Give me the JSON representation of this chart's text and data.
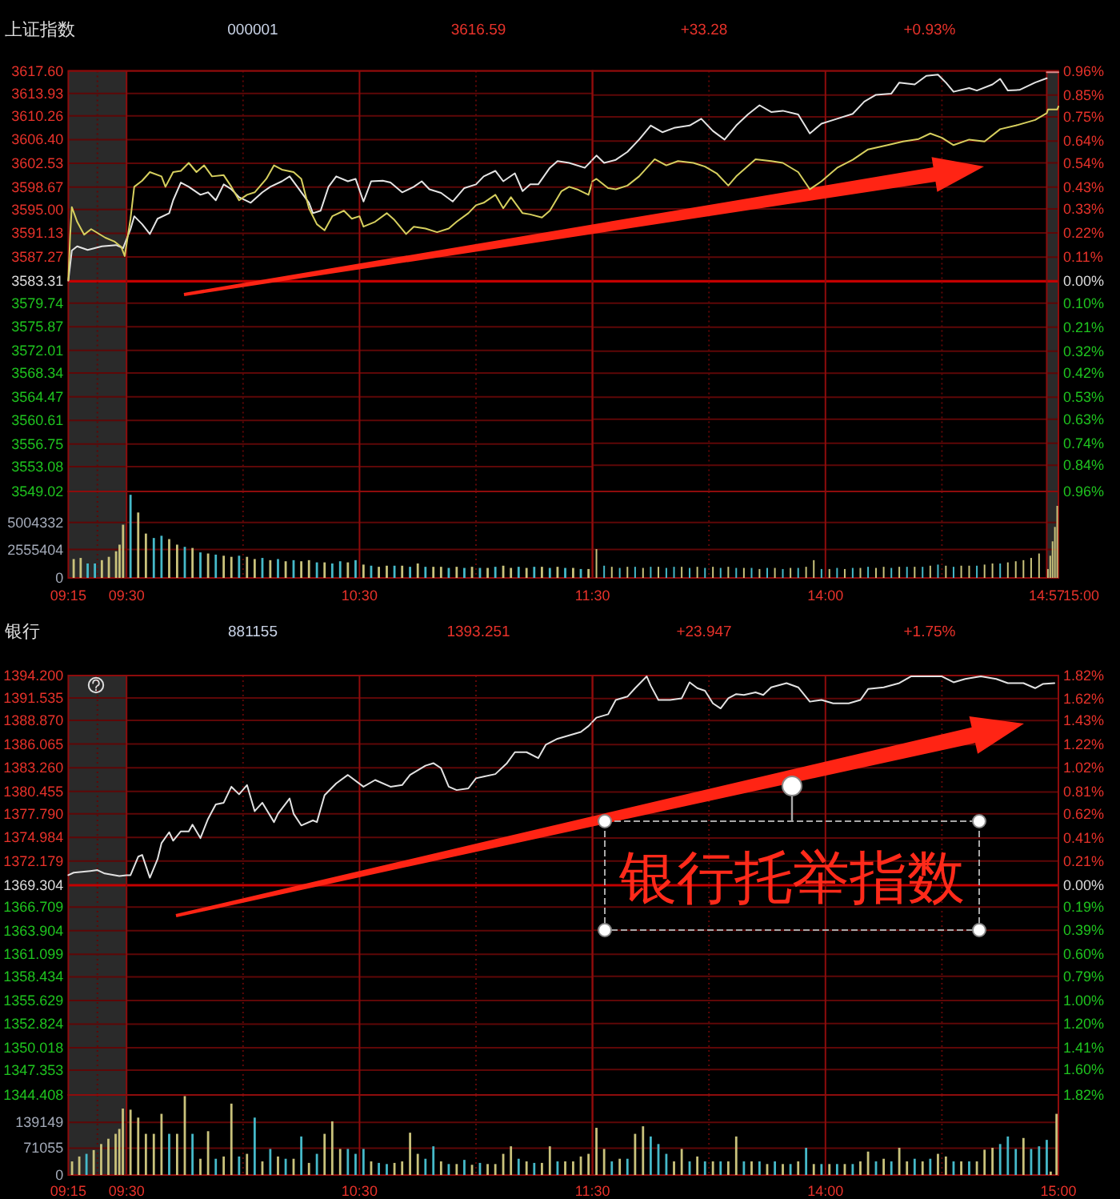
{
  "chart_data": [
    {
      "type": "line",
      "title": "上证指数",
      "annotations": [
        "000001",
        "3616.59",
        "+33.28",
        "+0.93%"
      ],
      "xlim": [
        9.25,
        11.5
      ],
      "ylim": [
        3549.02,
        3617.6
      ],
      "yticks": [
        {
          "value": 3617.6,
          "label": "3617.60"
        },
        3613.93,
        3610.26,
        {
          "value": 3606.4,
          "label": "3606.40"
        },
        3602.53,
        3598.67,
        {
          "value": 3595,
          "label": "3595.00"
        },
        3591.13,
        3587.27,
        3583.31,
        3579.74,
        3575.87,
        3572.01,
        3568.34,
        3564.47,
        3560.61,
        3556.75,
        3553.08,
        3549.02
      ],
      "grid": "y",
      "tick_labels": "y",
      "bands": [
        {
          "axis": "x",
          "from": 9.25,
          "to": 9.5,
          "color": "#2a2a2a"
        }
      ],
      "ref_lines": [
        {
          "axis": "y",
          "value": 3583.31,
          "color": "#c40000"
        },
        {
          "axis": "x",
          "value": 9.375,
          "color": "#5e0707",
          "line_style": "dotted"
        },
        {
          "axis": "x",
          "value": 9.5,
          "color": "#8e0c0c"
        },
        {
          "axis": "x",
          "value": 10,
          "color": "#5e0707",
          "line_style": "dotted"
        },
        {
          "axis": "x",
          "value": 10.5,
          "color": "#8e0c0c"
        },
        {
          "axis": "x",
          "value": 11,
          "color": "#5e0707",
          "line_style": "dotted"
        }
      ],
      "series": [
        {
          "color": "#e4e4e4",
          "x": [
            9.25,
            9.265,
            9.288,
            9.333,
            9.394,
            9.455,
            9.485,
            9.517,
            9.533,
            9.567,
            9.6,
            9.633,
            9.683,
            9.7,
            9.733,
            9.767,
            9.817,
            9.85,
            9.883,
            9.917,
            9.95,
            9.983,
            10.033,
            10.083,
            10.117,
            10.167,
            10.2,
            10.233,
            10.283,
            10.3,
            10.333,
            10.367,
            10.4,
            10.45,
            10.483,
            10.517,
            10.55,
            10.6,
            10.633,
            10.683,
            10.733,
            10.767,
            10.8,
            10.85,
            10.9,
            10.95,
            11,
            11.033,
            11.083,
            11.117,
            11.167,
            11.2,
            11.233,
            11.267,
            11.317,
            11.35,
            11.4,
            11.467,
            11.5
          ],
          "values": [
            3583.4,
            3588.3,
            3589.0,
            3588.4,
            3589.0,
            3589.2,
            3588.7,
            3591.8,
            3593.9,
            3592.6,
            3591.0,
            3593.5,
            3594.4,
            3596.5,
            3599.4,
            3598.7,
            3597.4,
            3597.8,
            3596.5,
            3599.1,
            3598.3,
            3597.0,
            3596.1,
            3597.8,
            3598.7,
            3599.6,
            3600.4,
            3598.7,
            3596.1,
            3594.4,
            3594.8,
            3598.7,
            3600.4,
            3599.6,
            3600.0,
            3596.3,
            3599.6,
            3599.7,
            3599.4,
            3597.8,
            3598.7,
            3599.6,
            3598.3,
            3597.7,
            3596.3,
            3598.5,
            3599.1,
            3600.4,
            3601.3,
            3599.6,
            3600.9,
            3598.0,
            3599.1,
            3599.1,
            3601.8,
            3602.9,
            3602.6,
            3601.8,
            3603.1
          ]
        },
        {
          "color": "#d6cf5e",
          "x": [
            9.25,
            9.258,
            9.265,
            9.288,
            9.318,
            9.348,
            9.409,
            9.447,
            9.477,
            9.492,
            9.517,
            9.533,
            9.567,
            9.6,
            9.65,
            9.667,
            9.7,
            9.733,
            9.767,
            9.8,
            9.833,
            9.867,
            9.917,
            9.95,
            9.983,
            10.017,
            10.05,
            10.1,
            10.133,
            10.167,
            10.217,
            10.25,
            10.283,
            10.317,
            10.35,
            10.383,
            10.433,
            10.467,
            10.5,
            10.517,
            10.567,
            10.617,
            10.65,
            10.7,
            10.733,
            10.783,
            10.833,
            10.883,
            10.917,
            10.967,
            11,
            11.033,
            11.083,
            11.117,
            11.15,
            11.2,
            11.233,
            11.283,
            11.317,
            11.367,
            11.4,
            11.433,
            11.483,
            11.5
          ],
          "values": [
            3583.5,
            3590.9,
            3595.4,
            3593.0,
            3590.9,
            3591.8,
            3590.4,
            3589.8,
            3588.9,
            3587.4,
            3593.5,
            3598.7,
            3599.7,
            3601.1,
            3600.4,
            3598.7,
            3601.1,
            3601.3,
            3602.6,
            3601.1,
            3602.2,
            3600.4,
            3600.6,
            3598.7,
            3596.5,
            3597.4,
            3597.8,
            3600.0,
            3602.2,
            3601.5,
            3601.1,
            3600.0,
            3595.2,
            3592.6,
            3591.6,
            3593.9,
            3594.8,
            3593.5,
            3593.9,
            3592.2,
            3593.0,
            3594.4,
            3593.3,
            3591.0,
            3592.2,
            3591.9,
            3591.3,
            3591.9,
            3593.0,
            3594.4,
            3595.7,
            3596.1,
            3597.4,
            3595.2,
            3597.0,
            3594.4,
            3594.2,
            3593.7,
            3594.8,
            3598.0,
            3598.7,
            3598.3,
            3597.4,
            3599.6
          ]
        }
      ]
    },
    {
      "type": "line",
      "xlim": [
        13,
        15
      ],
      "ylim": [
        3549.02,
        3617.6
      ],
      "y2lim": [
        -0.96,
        0.96
      ],
      "y2ticks": [
        {
          "value": 0.96,
          "label": "0.96%"
        },
        {
          "value": 0.85,
          "label": "0.85%"
        },
        {
          "value": 0.75,
          "label": "0.75%"
        },
        {
          "value": 0.64,
          "label": "0.64%"
        },
        {
          "value": 0.54,
          "label": "0.54%"
        },
        {
          "value": 0.43,
          "label": "0.43%"
        },
        {
          "value": 0.33,
          "label": "0.33%"
        },
        {
          "value": 0.22,
          "label": "0.22%"
        },
        {
          "value": 0.11,
          "label": "0.11%"
        },
        {
          "value": 0,
          "label": "0.00%"
        },
        {
          "value": -0.1,
          "label": "0.10%"
        },
        {
          "value": -0.21,
          "label": "0.21%"
        },
        {
          "value": -0.32,
          "label": "0.32%"
        },
        {
          "value": -0.42,
          "label": "0.42%"
        },
        {
          "value": -0.53,
          "label": "0.53%"
        },
        {
          "value": -0.63,
          "label": "0.63%"
        },
        {
          "value": -0.74,
          "label": "0.74%"
        },
        {
          "value": -0.84,
          "label": "0.84%"
        },
        {
          "value": -0.96,
          "label": "0.96%"
        }
      ],
      "grid": "y",
      "tick_labels": "y",
      "bands": [
        {
          "axis": "x",
          "from": 14.95,
          "to": 15,
          "color": "#2a2a2a"
        }
      ],
      "ref_lines": [
        {
          "axis": "y",
          "value": 3583.31,
          "color": "#c40000"
        },
        {
          "axis": "x",
          "value": 13.5,
          "color": "#5e0707",
          "line_style": "dotted"
        },
        {
          "axis": "x",
          "value": 14,
          "color": "#8e0c0c"
        },
        {
          "axis": "x",
          "value": 14.5,
          "color": "#5e0707",
          "line_style": "dotted"
        },
        {
          "axis": "x",
          "value": 14.95,
          "color": "#8e0c0c"
        }
      ],
      "series": [
        {
          "color": "#e4e4e4",
          "x": [
            13,
            13.017,
            13.05,
            13.1,
            13.15,
            13.2,
            13.25,
            13.3,
            13.35,
            13.417,
            13.467,
            13.517,
            13.567,
            13.617,
            13.667,
            13.717,
            13.767,
            13.817,
            13.883,
            13.933,
            13.983,
            14.05,
            14.117,
            14.167,
            14.217,
            14.283,
            14.317,
            14.383,
            14.433,
            14.483,
            14.517,
            14.55,
            14.617,
            14.65,
            14.717,
            14.75,
            14.783,
            14.833,
            14.9,
            14.95
          ],
          "values": [
            3603.1,
            3603.8,
            3602.6,
            3603.1,
            3604.4,
            3606.4,
            3608.7,
            3607.6,
            3608.3,
            3608.7,
            3609.8,
            3607.8,
            3606.4,
            3608.7,
            3610.5,
            3612.0,
            3610.9,
            3611.1,
            3610.5,
            3607.4,
            3609.0,
            3609.8,
            3610.6,
            3612.6,
            3613.7,
            3613.9,
            3615.7,
            3615.4,
            3616.8,
            3617.0,
            3615.7,
            3614.2,
            3614.8,
            3614.4,
            3615.4,
            3616.3,
            3614.4,
            3614.5,
            3615.7,
            3616.4
          ]
        },
        {
          "color": "#d6cf5e",
          "x": [
            13,
            13.017,
            13.067,
            13.1,
            13.15,
            13.2,
            13.267,
            13.317,
            13.367,
            13.433,
            13.483,
            13.533,
            13.583,
            13.617,
            13.7,
            13.767,
            13.817,
            13.883,
            13.933,
            13.983,
            14.05,
            14.117,
            14.183,
            14.267,
            14.333,
            14.4,
            14.45,
            14.5,
            14.55,
            14.617,
            14.683,
            14.75,
            14.817,
            14.9,
            14.95,
            14.955,
            14.995,
            15
          ],
          "values": [
            3599.6,
            3600.0,
            3598.5,
            3598.3,
            3598.9,
            3600.4,
            3603.2,
            3602.2,
            3602.9,
            3602.6,
            3602.0,
            3600.9,
            3598.9,
            3600.4,
            3603.2,
            3602.9,
            3602.6,
            3601.1,
            3598.3,
            3599.6,
            3601.8,
            3603.1,
            3604.8,
            3605.5,
            3606.1,
            3606.5,
            3607.4,
            3606.7,
            3605.5,
            3606.4,
            3606.1,
            3608.1,
            3608.7,
            3609.6,
            3610.7,
            3611.3,
            3611.3,
            3611.8
          ]
        },
        {
          "color": "#e08a8a",
          "x": [
            14.95,
            15
          ],
          "values": [
            3617.4,
            3617.4
          ]
        }
      ]
    },
    {
      "type": "bar",
      "xlim": [
        9.25,
        11.5
      ],
      "xticks": [
        {
          "value": 9.25,
          "label": "09:15"
        },
        {
          "value": 9.5,
          "label": "09:30"
        },
        {
          "value": 10.5,
          "label": "10:30"
        },
        {
          "value": 11.5,
          "label": "11:30"
        }
      ],
      "ylim": [
        0,
        7800000
      ],
      "yticks": [
        0,
        2555404,
        5004332
      ],
      "grid": "y",
      "bands": [
        {
          "axis": "x",
          "from": 9.25,
          "to": 9.5,
          "color": "#2a2a2a"
        }
      ],
      "ref_lines": [
        {
          "axis": "x",
          "value": 9.375,
          "color": "#5e0707",
          "line_style": "dotted"
        },
        {
          "axis": "x",
          "value": 9.5,
          "color": "#8e0c0c"
        },
        {
          "axis": "x",
          "value": 10,
          "color": "#5e0707",
          "line_style": "dotted"
        },
        {
          "axis": "x",
          "value": 10.5,
          "color": "#8e0c0c"
        },
        {
          "axis": "x",
          "value": 11,
          "color": "#5e0707",
          "line_style": "dotted"
        }
      ],
      "series": [
        {
          "color": "#c9c27b",
          "x": [
            9.273,
            9.303,
            9.394,
            9.424,
            9.455,
            9.47,
            9.485,
            9.55,
            9.583,
            9.683,
            9.717,
            9.783,
            9.85,
            9.917,
            9.95,
            10.017,
            10.05,
            10.117,
            10.183,
            10.25,
            10.283,
            10.35,
            10.45,
            10.517,
            10.583,
            10.617,
            10.683,
            10.75,
            10.817,
            10.85,
            10.917,
            10.983,
            11.05,
            11.117,
            11.15,
            11.217,
            11.283,
            11.35,
            11.417,
            11.483
          ],
          "values": [
            1700000,
            1800000,
            1600000,
            1900000,
            2400000,
            3000000,
            4800000,
            5900000,
            4000000,
            3500000,
            3000000,
            2700000,
            2200000,
            2000000,
            1900000,
            1900000,
            1700000,
            1600000,
            1500000,
            1500000,
            1600000,
            1400000,
            1400000,
            1200000,
            1000000,
            1100000,
            1100000,
            1300000,
            1000000,
            1000000,
            1000000,
            1000000,
            900000,
            1100000,
            900000,
            900000,
            1000000,
            1000000,
            900000,
            800000
          ]
        },
        {
          "color": "#45b9c9",
          "x": [
            9.333,
            9.364,
            9.517,
            9.617,
            9.65,
            9.75,
            9.817,
            9.883,
            9.983,
            10.083,
            10.15,
            10.217,
            10.317,
            10.383,
            10.417,
            10.483,
            10.55,
            10.65,
            10.717,
            10.783,
            10.883,
            10.95,
            11.017,
            11.083,
            11.183,
            11.25,
            11.317,
            11.383,
            11.45
          ],
          "values": [
            1300000,
            1300000,
            7500000,
            3600000,
            3800000,
            2800000,
            2300000,
            2100000,
            2000000,
            1800000,
            1700000,
            1600000,
            1400000,
            1300000,
            1500000,
            1600000,
            1100000,
            1100000,
            1000000,
            1000000,
            900000,
            900000,
            900000,
            1000000,
            1000000,
            1000000,
            900000,
            900000,
            800000
          ]
        }
      ]
    },
    {
      "type": "bar",
      "annotations": [
        "15:00"
      ],
      "xlim": [
        13,
        15
      ],
      "xticks": [
        {
          "value": 14,
          "label": "14:00"
        },
        {
          "value": 14.95,
          "label": "14:57"
        }
      ],
      "ylim": [
        0,
        7800000
      ],
      "yticks": [
        0,
        2555404,
        5004332
      ],
      "grid": "y",
      "tick_labels": "x",
      "bands": [
        {
          "axis": "x",
          "from": 14.95,
          "to": 15,
          "color": "#2a2a2a"
        }
      ],
      "ref_lines": [
        {
          "axis": "x",
          "value": 13.5,
          "color": "#5e0707",
          "line_style": "dotted"
        },
        {
          "axis": "x",
          "value": 14,
          "color": "#8e0c0c"
        },
        {
          "axis": "x",
          "value": 14.5,
          "color": "#5e0707",
          "line_style": "dotted"
        },
        {
          "axis": "x",
          "value": 14.95,
          "color": "#8e0c0c"
        }
      ],
      "series": [
        {
          "color": "#c9c27b",
          "x": [
            13.017,
            13.083,
            13.15,
            13.217,
            13.283,
            13.383,
            13.45,
            13.517,
            13.583,
            13.65,
            13.717,
            13.783,
            13.85,
            13.917,
            13.95,
            14.017,
            14.083,
            14.15,
            14.217,
            14.25,
            14.317,
            14.383,
            14.45,
            14.517,
            14.583,
            14.617,
            14.683,
            14.717,
            14.783,
            14.817,
            14.85,
            14.883,
            14.917,
            14.955,
            14.965,
            14.975,
            14.985,
            14.995
          ],
          "values": [
            2600000,
            1000000,
            1000000,
            900000,
            1000000,
            1000000,
            1000000,
            1000000,
            1000000,
            900000,
            800000,
            900000,
            900000,
            1000000,
            1600000,
            800000,
            800000,
            900000,
            900000,
            1000000,
            1000000,
            1000000,
            1100000,
            1100000,
            1100000,
            1100000,
            1200000,
            1300000,
            1400000,
            1500000,
            1600000,
            1800000,
            2200000,
            800000,
            2000000,
            3300000,
            4600000,
            6500000
          ]
        },
        {
          "color": "#45b9c9",
          "x": [
            13.05,
            13.117,
            13.183,
            13.25,
            13.317,
            13.35,
            13.417,
            13.483,
            13.55,
            13.617,
            13.683,
            13.75,
            13.817,
            13.883,
            13.983,
            14.05,
            14.117,
            14.183,
            14.283,
            14.35,
            14.417,
            14.483,
            14.55,
            14.65,
            14.75
          ],
          "values": [
            1100000,
            900000,
            1000000,
            1000000,
            900000,
            1000000,
            900000,
            900000,
            900000,
            900000,
            900000,
            900000,
            800000,
            900000,
            800000,
            900000,
            900000,
            1000000,
            900000,
            1000000,
            1000000,
            1200000,
            1000000,
            1100000,
            1300000
          ]
        }
      ]
    },
    {
      "type": "line",
      "title": "银行",
      "annotations": [
        "881155",
        "1393.251",
        "+23.947",
        "+1.75%"
      ],
      "xlim": [
        9.25,
        11.5
      ],
      "ylim": [
        1344.408,
        1394.2
      ],
      "yticks": [
        {
          "value": 1394.2,
          "label": "1394.200"
        },
        1391.535,
        {
          "value": 1388.87,
          "label": "1388.870"
        },
        1386.065,
        {
          "value": 1383.26,
          "label": "1383.260"
        },
        1380.455,
        {
          "value": 1377.79,
          "label": "1377.790"
        },
        1374.984,
        1372.179,
        1369.304,
        1366.709,
        1363.904,
        1361.099,
        1358.434,
        1355.629,
        1352.824,
        1350.018,
        1347.353,
        1344.408
      ],
      "grid": "y",
      "tick_labels": "y",
      "bands": [
        {
          "axis": "x",
          "from": 9.25,
          "to": 9.5,
          "color": "#2a2a2a"
        }
      ],
      "ref_lines": [
        {
          "axis": "y",
          "value": 1369.304,
          "color": "#c40000"
        },
        {
          "axis": "x",
          "value": 9.375,
          "color": "#5e0707",
          "line_style": "dotted"
        },
        {
          "axis": "x",
          "value": 9.5,
          "color": "#8e0c0c"
        },
        {
          "axis": "x",
          "value": 10,
          "color": "#5e0707",
          "line_style": "dotted"
        },
        {
          "axis": "x",
          "value": 10.5,
          "color": "#8e0c0c"
        },
        {
          "axis": "x",
          "value": 11,
          "color": "#5e0707",
          "line_style": "dotted"
        }
      ],
      "color": "#e2e2e2",
      "x": [
        9.25,
        9.273,
        9.344,
        9.375,
        9.406,
        9.469,
        9.5,
        9.517,
        9.55,
        9.567,
        9.6,
        9.633,
        9.65,
        9.683,
        9.7,
        9.733,
        9.767,
        9.783,
        9.817,
        9.85,
        9.883,
        9.917,
        9.95,
        9.983,
        10.017,
        10.05,
        10.083,
        10.133,
        10.15,
        10.2,
        10.217,
        10.25,
        10.3,
        10.317,
        10.35,
        10.4,
        10.45,
        10.517,
        10.567,
        10.633,
        10.683,
        10.717,
        10.783,
        10.817,
        10.85,
        10.883,
        10.917,
        10.967,
        11,
        11.033,
        11.083,
        11.133,
        11.167,
        11.217,
        11.267,
        11.3,
        11.35,
        11.4,
        11.45,
        11.483,
        11.5
      ],
      "values": [
        1370.5,
        1370.8,
        1371.0,
        1371.1,
        1370.7,
        1370.4,
        1370.5,
        1370.5,
        1372.7,
        1372.9,
        1370.2,
        1372.4,
        1374.3,
        1375.6,
        1374.6,
        1375.7,
        1375.7,
        1376.5,
        1374.9,
        1377.2,
        1378.9,
        1379.1,
        1381.0,
        1380.1,
        1381.2,
        1378.1,
        1379.1,
        1376.8,
        1377.8,
        1379.6,
        1377.8,
        1376.4,
        1377.0,
        1376.8,
        1380.0,
        1381.4,
        1382.4,
        1381.0,
        1381.8,
        1381.0,
        1381.2,
        1382.4,
        1383.5,
        1383.8,
        1383.2,
        1381.0,
        1380.6,
        1380.8,
        1382.0,
        1382.2,
        1382.5,
        1383.8,
        1385.1,
        1385.1,
        1384.4,
        1386.0,
        1386.7,
        1387.1,
        1387.5,
        1388.2,
        1388.7
      ]
    },
    {
      "type": "line",
      "annotations": [
        "银行托举指数"
      ],
      "xlim": [
        13,
        15
      ],
      "ylim": [
        1344.408,
        1394.2
      ],
      "y2lim": [
        -1.82,
        1.82
      ],
      "y2ticks": [
        {
          "value": 1.82,
          "label": "1.82%"
        },
        {
          "value": 1.62,
          "label": "1.62%"
        },
        {
          "value": 1.43,
          "label": "1.43%"
        },
        {
          "value": 1.22,
          "label": "1.22%"
        },
        {
          "value": 1.02,
          "label": "1.02%"
        },
        {
          "value": 0.81,
          "label": "0.81%"
        },
        {
          "value": 0.62,
          "label": "0.62%"
        },
        {
          "value": 0.41,
          "label": "0.41%"
        },
        {
          "value": 0.21,
          "label": "0.21%"
        },
        {
          "value": 0,
          "label": "0.00%"
        },
        {
          "value": -0.19,
          "label": "0.19%"
        },
        {
          "value": -0.39,
          "label": "0.39%"
        },
        {
          "value": -0.6,
          "label": "0.60%"
        },
        {
          "value": -0.79,
          "label": "0.79%"
        },
        {
          "value": -1,
          "label": "1.00%"
        },
        {
          "value": -1.2,
          "label": "1.20%"
        },
        {
          "value": -1.41,
          "label": "1.41%"
        },
        {
          "value": -1.6,
          "label": "1.60%"
        },
        {
          "value": -1.82,
          "label": "1.82%"
        }
      ],
      "grid": "y",
      "tick_labels": "y",
      "ref_lines": [
        {
          "axis": "y",
          "value": 1369.304,
          "color": "#c40000"
        },
        {
          "axis": "x",
          "value": 13.5,
          "color": "#5e0707",
          "line_style": "dotted"
        },
        {
          "axis": "x",
          "value": 14,
          "color": "#8e0c0c"
        },
        {
          "axis": "x",
          "value": 14.5,
          "color": "#5e0707",
          "line_style": "dotted"
        }
      ],
      "color": "#e2e2e2",
      "x": [
        13,
        13.017,
        13.067,
        13.1,
        13.15,
        13.183,
        13.233,
        13.25,
        13.283,
        13.333,
        13.383,
        13.417,
        13.45,
        13.483,
        13.517,
        13.55,
        13.583,
        13.617,
        13.65,
        13.7,
        13.733,
        13.767,
        13.833,
        13.883,
        13.933,
        13.983,
        14.033,
        14.1,
        14.15,
        14.183,
        14.25,
        14.317,
        14.367,
        14.433,
        14.5,
        14.55,
        14.6,
        14.667,
        14.733,
        14.783,
        14.85,
        14.9,
        14.933,
        14.983
      ],
      "values": [
        1388.7,
        1389.2,
        1389.6,
        1391.3,
        1391.7,
        1392.7,
        1394.1,
        1393.0,
        1391.3,
        1391.3,
        1391.5,
        1393.4,
        1392.7,
        1392.4,
        1390.9,
        1390.3,
        1391.5,
        1392.0,
        1391.9,
        1392.2,
        1391.9,
        1392.8,
        1393.3,
        1392.8,
        1391.1,
        1391.3,
        1390.9,
        1390.9,
        1391.3,
        1392.6,
        1392.8,
        1393.3,
        1394.1,
        1394.1,
        1394.1,
        1393.4,
        1393.8,
        1394.1,
        1393.8,
        1393.3,
        1393.3,
        1392.7,
        1393.2,
        1393.3
      ]
    },
    {
      "type": "bar",
      "xlim": [
        9.25,
        11.5
      ],
      "xticks": [
        {
          "value": 9.25,
          "label": "09:15"
        },
        {
          "value": 9.5,
          "label": "09:30"
        },
        {
          "value": 10.5,
          "label": "10:30"
        },
        {
          "value": 11.5,
          "label": "11:30"
        }
      ],
      "ylim": [
        0,
        212000
      ],
      "yticks": [
        0,
        71055,
        139149
      ],
      "grid": "y",
      "bands": [
        {
          "axis": "x",
          "from": 9.25,
          "to": 9.5,
          "color": "#2a2a2a"
        }
      ],
      "ref_lines": [
        {
          "axis": "x",
          "value": 9.375,
          "color": "#5e0707",
          "line_style": "dotted"
        },
        {
          "axis": "x",
          "value": 9.5,
          "color": "#8e0c0c"
        },
        {
          "axis": "x",
          "value": 10,
          "color": "#5e0707",
          "line_style": "dotted"
        },
        {
          "axis": "x",
          "value": 10.5,
          "color": "#8e0c0c"
        },
        {
          "axis": "x",
          "value": 11,
          "color": "#5e0707",
          "line_style": "dotted"
        }
      ],
      "series": [
        {
          "color": "#c9c27b",
          "x": [
            9.266,
            9.297,
            9.359,
            9.391,
            9.422,
            9.453,
            9.469,
            9.484,
            9.517,
            9.55,
            9.583,
            9.617,
            9.65,
            9.717,
            9.75,
            9.817,
            9.85,
            9.917,
            9.95,
            10.017,
            10.083,
            10.15,
            10.217,
            10.283,
            10.35,
            10.383,
            10.417,
            10.55,
            10.65,
            10.683,
            10.717,
            10.75,
            10.85,
            10.917,
            10.983,
            11.05,
            11.083,
            11.117,
            11.15,
            11.217,
            11.283,
            11.317,
            11.383,
            11.417,
            11.45,
            11.483
          ],
          "values": [
            36000,
            49000,
            66000,
            82000,
            96000,
            109000,
            122000,
            176000,
            173000,
            152000,
            109000,
            109000,
            162000,
            109000,
            209000,
            43000,
            116000,
            49000,
            189000,
            56000,
            36000,
            49000,
            43000,
            32000,
            109000,
            142000,
            69000,
            36000,
            32000,
            36000,
            112000,
            56000,
            36000,
            29000,
            27000,
            29000,
            29000,
            56000,
            76000,
            36000,
            32000,
            76000,
            36000,
            36000,
            49000,
            56000
          ]
        },
        {
          "color": "#45b9c9",
          "x": [
            9.328,
            9.683,
            9.783,
            9.883,
            9.983,
            10.05,
            10.117,
            10.183,
            10.25,
            10.317,
            10.45,
            10.483,
            10.517,
            10.583,
            10.617,
            10.783,
            10.817,
            10.883,
            10.95,
            11.017,
            11.183,
            11.25,
            11.35
          ],
          "values": [
            56000,
            109000,
            109000,
            43000,
            49000,
            152000,
            69000,
            43000,
            102000,
            56000,
            69000,
            56000,
            69000,
            32000,
            29000,
            43000,
            76000,
            29000,
            40000,
            32000,
            43000,
            32000,
            36000
          ]
        }
      ]
    },
    {
      "type": "bar",
      "xlim": [
        13,
        15
      ],
      "xticks": [
        {
          "value": 14,
          "label": "14:00"
        },
        {
          "value": 15,
          "label": "15:00"
        }
      ],
      "ylim": [
        0,
        212000
      ],
      "yticks": [
        0,
        71055,
        139149
      ],
      "grid": "y",
      "tick_labels": "x",
      "ref_lines": [
        {
          "axis": "x",
          "value": 13.5,
          "color": "#5e0707",
          "line_style": "dotted"
        },
        {
          "axis": "x",
          "value": 14,
          "color": "#8e0c0c"
        },
        {
          "axis": "x",
          "value": 14.5,
          "color": "#5e0707",
          "line_style": "dotted"
        }
      ],
      "series": [
        {
          "color": "#c9c27b",
          "x": [
            13.017,
            13.05,
            13.117,
            13.183,
            13.217,
            13.35,
            13.383,
            13.45,
            13.517,
            13.583,
            13.617,
            13.683,
            13.75,
            13.817,
            13.883,
            13.95,
            14.017,
            14.083,
            14.15,
            14.183,
            14.25,
            14.317,
            14.35,
            14.417,
            14.483,
            14.517,
            14.583,
            14.65,
            14.683,
            14.717,
            14.85,
            14.967,
            14.992
          ],
          "values": [
            125000,
            69000,
            43000,
            109000,
            129000,
            36000,
            69000,
            49000,
            36000,
            36000,
            102000,
            36000,
            29000,
            29000,
            36000,
            29000,
            29000,
            29000,
            36000,
            62000,
            43000,
            72000,
            36000,
            36000,
            56000,
            49000,
            36000,
            36000,
            67000,
            72000,
            98000,
            9000,
            162000
          ]
        },
        {
          "color": "#45b9c9",
          "x": [
            13.083,
            13.15,
            13.25,
            13.283,
            13.317,
            13.417,
            13.483,
            13.55,
            13.65,
            13.717,
            13.783,
            13.85,
            13.917,
            13.983,
            14.05,
            14.117,
            14.217,
            14.283,
            14.383,
            14.45,
            14.55,
            14.617,
            14.75,
            14.783,
            14.817,
            14.883,
            14.917,
            14.95
          ],
          "values": [
            36000,
            43000,
            102000,
            82000,
            56000,
            36000,
            36000,
            36000,
            36000,
            36000,
            36000,
            29000,
            72000,
            29000,
            29000,
            29000,
            36000,
            36000,
            43000,
            43000,
            36000,
            36000,
            82000,
            102000,
            69000,
            69000,
            76000,
            93000
          ]
        }
      ]
    }
  ]
}
